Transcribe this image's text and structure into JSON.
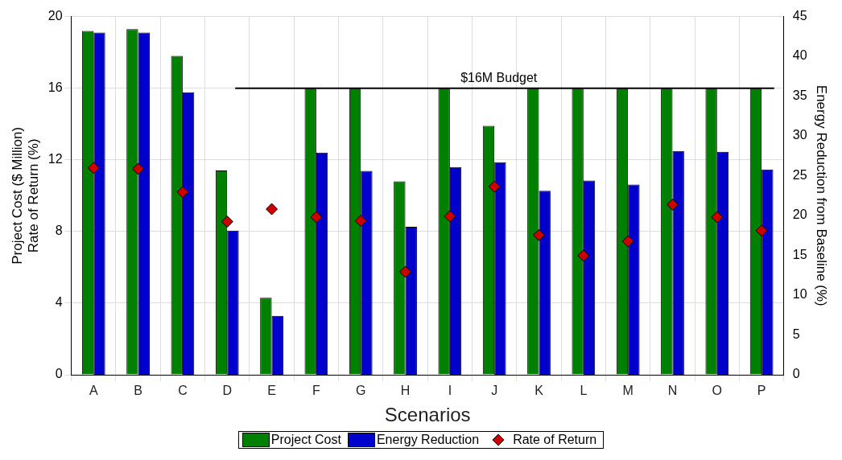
{
  "chart_data": {
    "type": "bar",
    "xlabel": "Scenarios",
    "ylabel": "Project Cost ($ Million)\nRate of Return (%)",
    "y2label": "Energy Reduction from Baseline (%)",
    "categories": [
      "A",
      "B",
      "C",
      "D",
      "E",
      "F",
      "G",
      "H",
      "I",
      "J",
      "K",
      "L",
      "M",
      "N",
      "O",
      "P"
    ],
    "series": [
      {
        "name": "Project Cost",
        "type": "bar",
        "color": "#008000",
        "values": [
          19.2,
          19.3,
          17.8,
          11.4,
          4.3,
          16,
          16,
          10.8,
          16,
          13.9,
          16,
          16,
          16,
          16,
          16,
          16
        ]
      },
      {
        "name": "Energy Reduction",
        "type": "bar",
        "axis": "y2",
        "color": "#0000cd",
        "values": [
          43.0,
          43.0,
          35.5,
          18.1,
          7.4,
          27.9,
          25.6,
          18.6,
          26.1,
          26.7,
          23.1,
          24.4,
          23.9,
          28.1,
          28.0,
          25.8
        ]
      },
      {
        "name": "Rate of Return",
        "type": "scatter",
        "marker": "diamond",
        "color": "#cc0000",
        "values": [
          11.55,
          11.5,
          10.2,
          8.55,
          9.25,
          8.8,
          8.6,
          5.75,
          8.85,
          10.5,
          7.8,
          6.65,
          7.45,
          9.5,
          8.8,
          8.05
        ]
      }
    ],
    "ylim": [
      0,
      20
    ],
    "yticks": [
      0,
      4,
      8,
      12,
      16,
      20
    ],
    "y2lim": [
      0,
      45
    ],
    "y2ticks": [
      0,
      5,
      10,
      15,
      20,
      25,
      30,
      35,
      40,
      45
    ],
    "ref_lines": [
      {
        "axis": "y",
        "value": 16,
        "label": "$16M Budget",
        "color": "#000000"
      }
    ],
    "grid": true,
    "legend": "bottom"
  }
}
